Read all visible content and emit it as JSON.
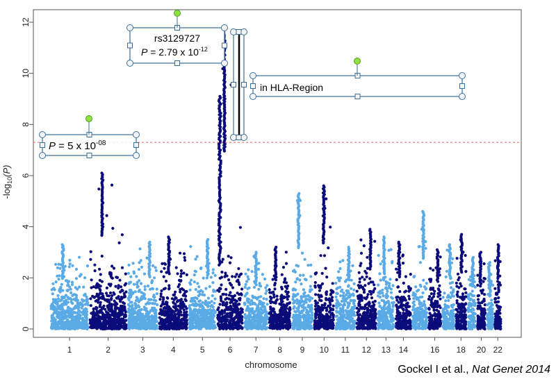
{
  "chart_data": {
    "type": "scatter",
    "subtype": "manhattan",
    "xlabel": "chromosome",
    "ylabel_prefix": "-log",
    "ylabel_sub": "10",
    "ylabel_paren": "(P)",
    "ylim": [
      0,
      12
    ],
    "yticks": [
      0,
      2,
      4,
      6,
      8,
      10,
      12
    ],
    "grid": false,
    "legend": "none",
    "colors": {
      "light": "#5aaae6",
      "dark": "#0b0b7a",
      "threshold": "#e06060",
      "box": "#3a6e9a",
      "handle_green": "#90e040"
    },
    "threshold": {
      "value": 7.3,
      "label_prefix": "P",
      "label_mid": " = 5 x 10",
      "label_exp": "-08"
    },
    "chromosome_labels": [
      "1",
      "2",
      "3",
      "4",
      "5",
      "6",
      "7",
      "8",
      "9",
      "10",
      "11",
      "12",
      "13",
      "14",
      "16",
      "18",
      "20",
      "22"
    ],
    "chromosomes": [
      {
        "chr": "1",
        "max": 3.3,
        "color": "light"
      },
      {
        "chr": "2",
        "max": 6.1,
        "color": "dark"
      },
      {
        "chr": "3",
        "max": 3.4,
        "color": "light"
      },
      {
        "chr": "4",
        "max": 3.6,
        "color": "dark"
      },
      {
        "chr": "5",
        "max": 3.5,
        "color": "light"
      },
      {
        "chr": "6",
        "max": 11.6,
        "color": "dark"
      },
      {
        "chr": "7",
        "max": 3.0,
        "color": "light"
      },
      {
        "chr": "8",
        "max": 3.2,
        "color": "dark"
      },
      {
        "chr": "9",
        "max": 5.3,
        "color": "light"
      },
      {
        "chr": "10",
        "max": 5.6,
        "color": "dark"
      },
      {
        "chr": "11",
        "max": 3.2,
        "color": "light"
      },
      {
        "chr": "12",
        "max": 3.9,
        "color": "dark"
      },
      {
        "chr": "13",
        "max": 3.6,
        "color": "light"
      },
      {
        "chr": "14",
        "max": 3.4,
        "color": "dark"
      },
      {
        "chr": "15",
        "max": 4.6,
        "color": "light"
      },
      {
        "chr": "16",
        "max": 3.1,
        "color": "dark"
      },
      {
        "chr": "17",
        "max": 3.3,
        "color": "light"
      },
      {
        "chr": "18",
        "max": 3.7,
        "color": "dark"
      },
      {
        "chr": "19",
        "max": 2.8,
        "color": "light"
      },
      {
        "chr": "20",
        "max": 3.0,
        "color": "dark"
      },
      {
        "chr": "21",
        "max": 2.6,
        "color": "light"
      },
      {
        "chr": "22",
        "max": 3.3,
        "color": "dark"
      }
    ],
    "annotations": {
      "snp": {
        "line1": "rs3129727",
        "line2_prefix": "P",
        "line2_mid": " = 2.79 x 10",
        "line2_exp": "-12"
      },
      "region": "in HLA-Region"
    }
  },
  "citation": {
    "authors": "Gockel I et al., ",
    "journal": "Nat Genet 2014"
  }
}
